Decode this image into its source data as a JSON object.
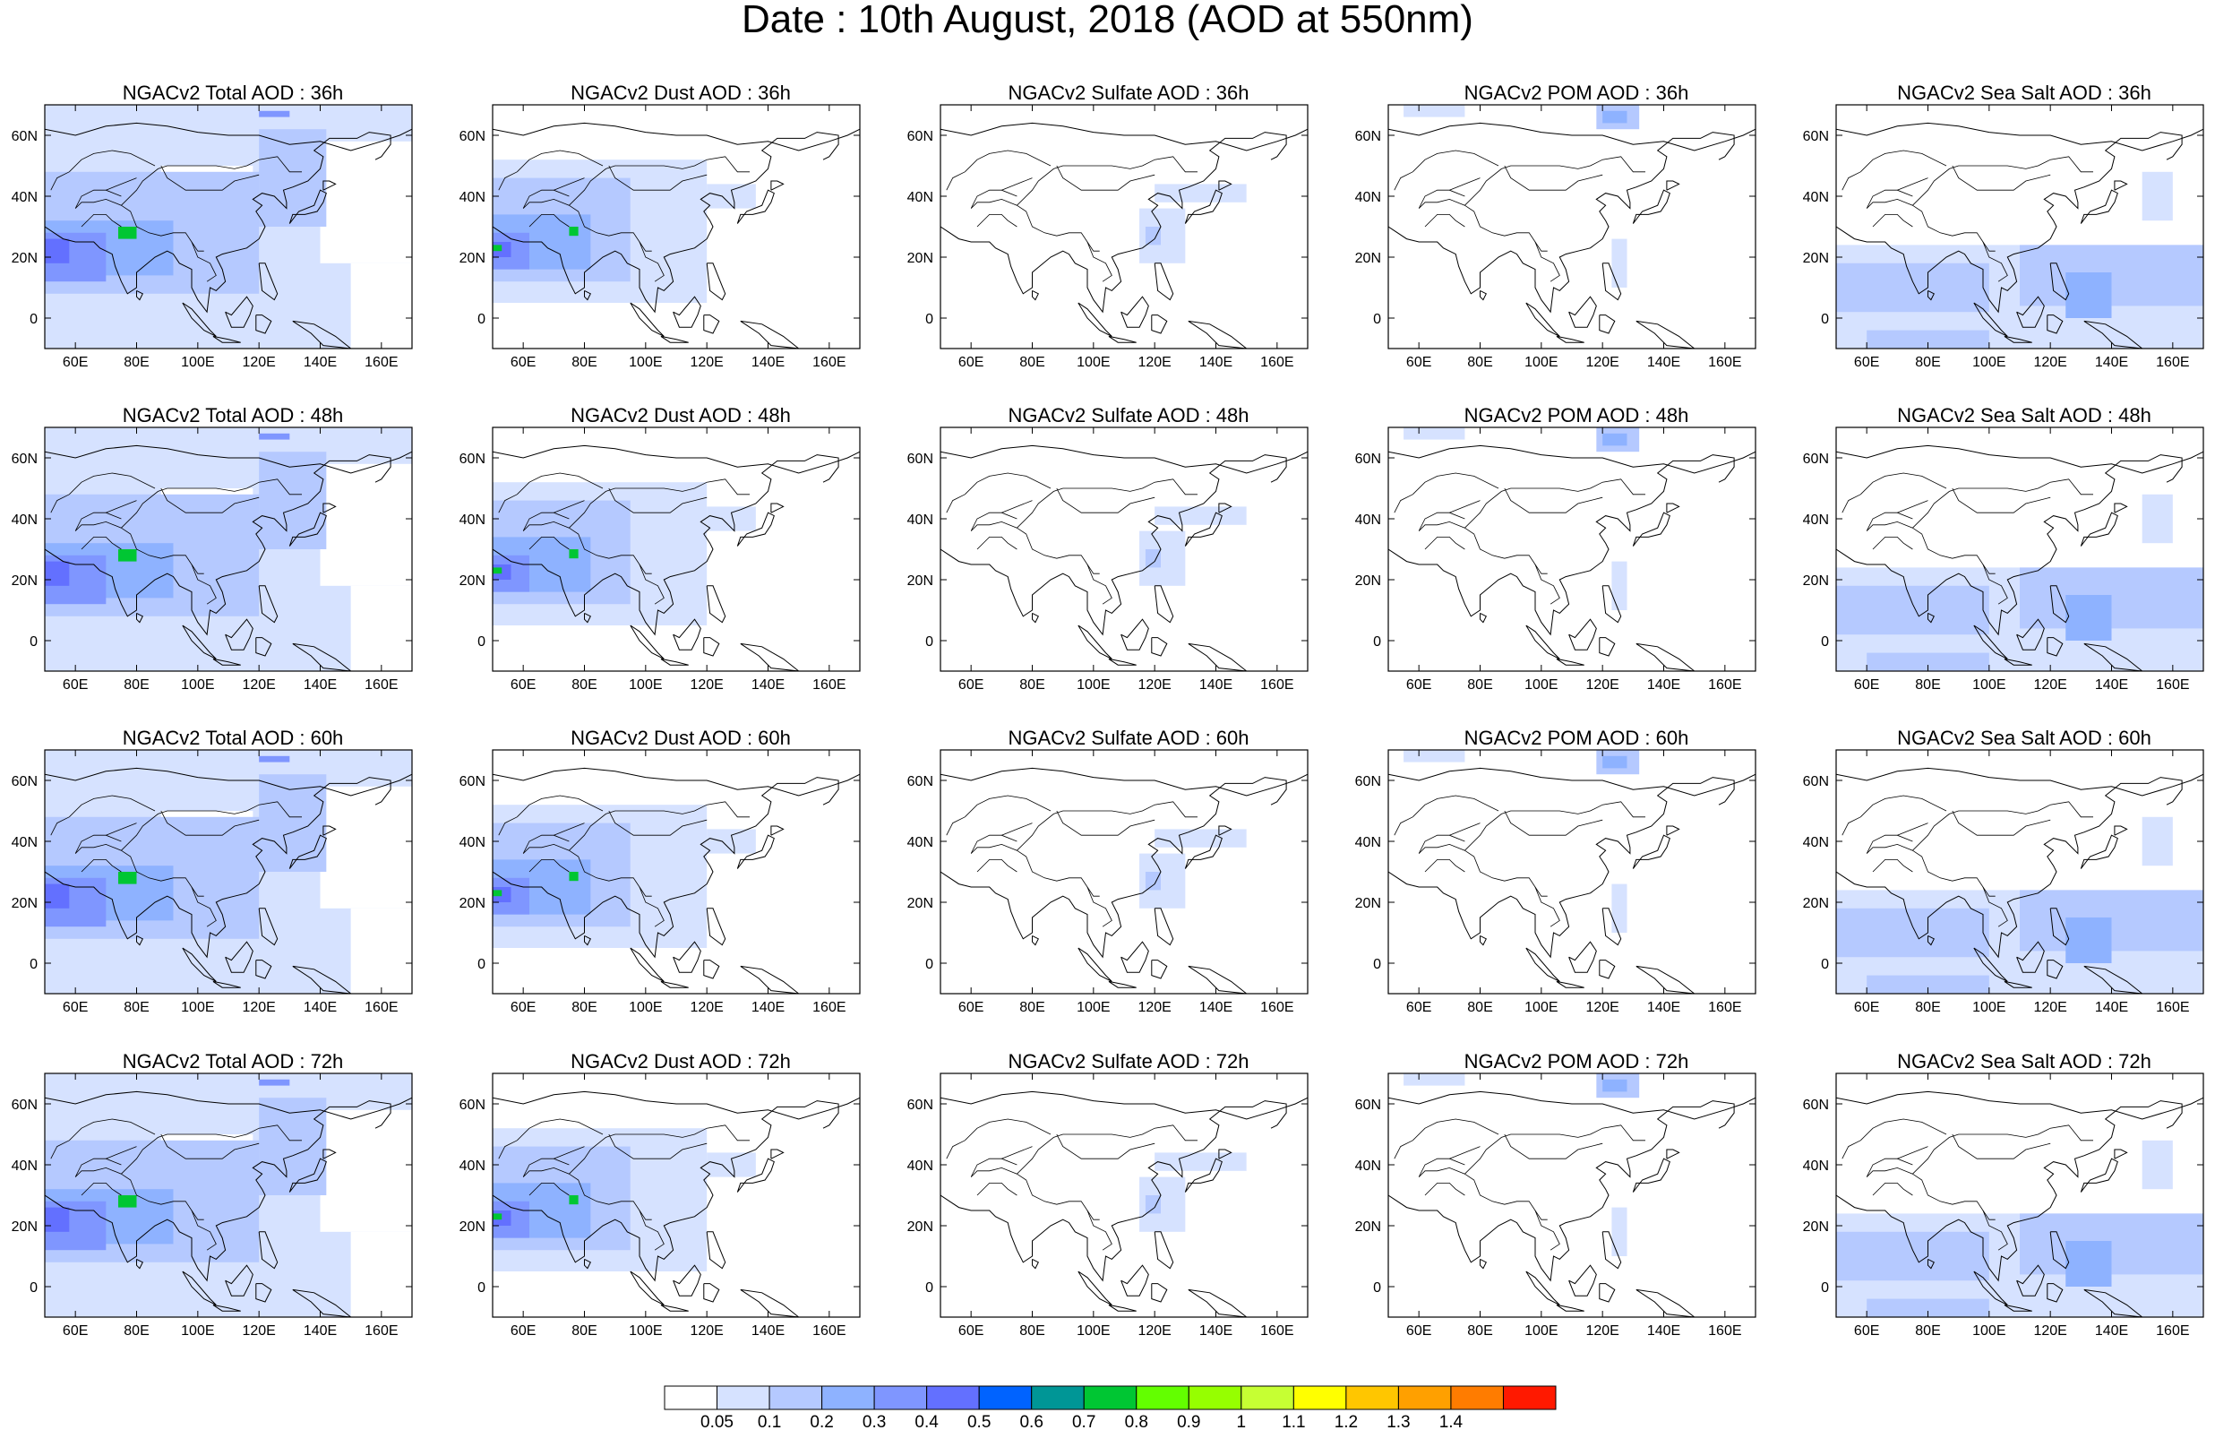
{
  "title": "Date : 10th August, 2018 (AOD at 550nm)",
  "lon_ticks": [
    "60E",
    "80E",
    "100E",
    "120E",
    "140E",
    "160E"
  ],
  "lat_ticks": [
    "60N",
    "40N",
    "20N",
    "0"
  ],
  "map_extent": {
    "lon_min": 50,
    "lon_max": 170,
    "lat_min": -10,
    "lat_max": 70
  },
  "panel_titles": [
    [
      "NGACv2 Total AOD : 36h",
      "NGACv2 Dust AOD : 36h",
      "NGACv2 Sulfate AOD : 36h",
      "NGACv2 POM AOD : 36h",
      "NGACv2 Sea Salt AOD : 36h"
    ],
    [
      "NGACv2 Total AOD : 48h",
      "NGACv2 Dust AOD : 48h",
      "NGACv2 Sulfate AOD : 48h",
      "NGACv2 POM AOD : 48h",
      "NGACv2 Sea Salt AOD : 48h"
    ],
    [
      "NGACv2 Total AOD : 60h",
      "NGACv2 Dust AOD : 60h",
      "NGACv2 Sulfate AOD : 60h",
      "NGACv2 POM AOD : 60h",
      "NGACv2 Sea Salt AOD : 60h"
    ],
    [
      "NGACv2 Total AOD : 72h",
      "NGACv2 Dust AOD : 72h",
      "NGACv2 Sulfate AOD : 72h",
      "NGACv2 POM AOD : 72h",
      "NGACv2 Sea Salt  AOD : 72h"
    ]
  ],
  "colorbar": {
    "labels": [
      "0.05",
      "0.1",
      "0.2",
      "0.3",
      "0.4",
      "0.5",
      "0.6",
      "0.7",
      "0.8",
      "0.9",
      "1",
      "1.1",
      "1.2",
      "1.3",
      "1.4"
    ],
    "colors": [
      "#ffffff",
      "#d6e2ff",
      "#b5c9ff",
      "#8eb2ff",
      "#7f96ff",
      "#6370ff",
      "#0063ff",
      "#009696",
      "#00c633",
      "#63ff00",
      "#96ff00",
      "#c6ff33",
      "#ffff00",
      "#ffc600",
      "#ffa000",
      "#ff7c00",
      "#ff1900"
    ]
  },
  "palette": {
    "c1": "#d6e2ff",
    "c2": "#b5c9ff",
    "c3": "#8eb2ff",
    "c4": "#7f96ff",
    "c5": "#6370ff",
    "green": "#00c633",
    "lime": "#63ff00"
  }
}
